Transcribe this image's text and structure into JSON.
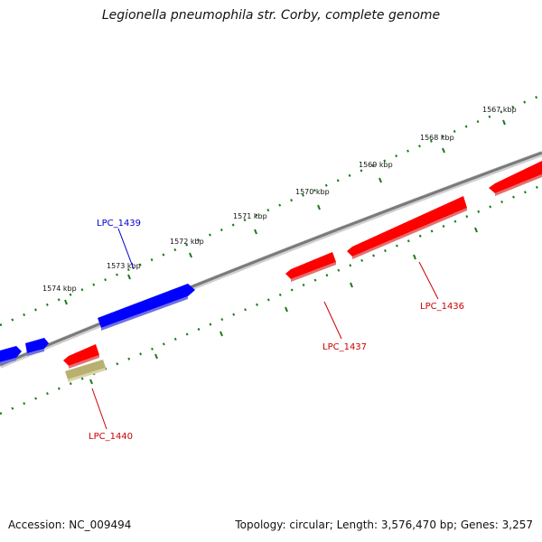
{
  "title": "Legionella pneumophila str. Corby, complete genome",
  "footer": {
    "accession_label": "Accession:",
    "accession": "NC_009494",
    "summary": "Topology: circular; Length: 3,576,470 bp; Genes: 3,257"
  },
  "scale_labels": [
    "1567 kbp",
    "1568 kbp",
    "1569 kbp",
    "1570 kbp",
    "1571 kbp",
    "1572 kbp",
    "1573 kbp",
    "1574 kbp"
  ],
  "genes": [
    {
      "label": "LPC_1439",
      "strand": "forward",
      "color": "#0000cc"
    },
    {
      "label": "LPC_1440",
      "strand": "reverse",
      "color": "#cc0000",
      "bar_color": "#b8b070"
    },
    {
      "label": "LPC_1437",
      "strand": "reverse",
      "color": "#cc0000"
    },
    {
      "label": "LPC_1436",
      "strand": "reverse",
      "color": "#cc0000"
    }
  ],
  "colors": {
    "backbone": "#888888",
    "tick": "#1a7a1a",
    "forward_gene": "#0000ff",
    "reverse_gene": "#ff0000",
    "rna_gene": "#b8b070"
  }
}
